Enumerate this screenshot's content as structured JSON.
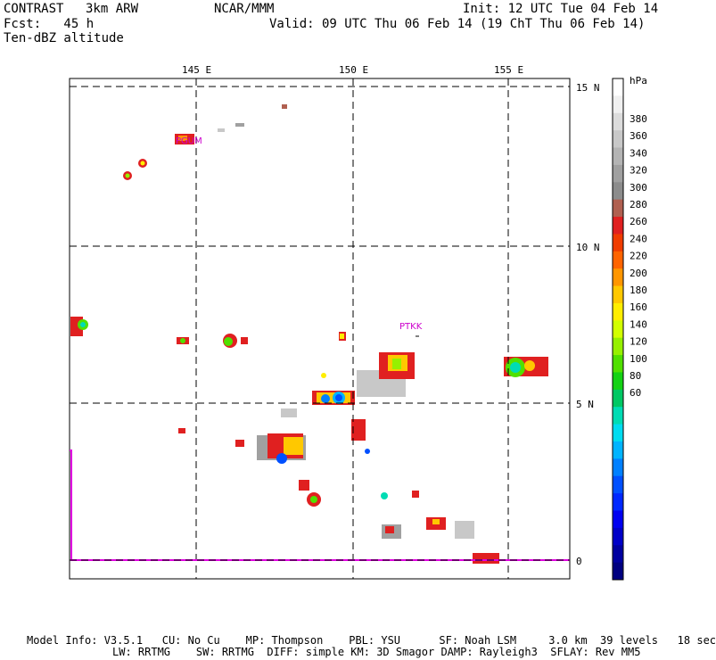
{
  "header": {
    "model_name": "CONTRAST",
    "resolution": "3km ARW",
    "center": "NCAR/MMM",
    "forecast": "Fcst:   45 h",
    "field": "Ten-dBZ altitude",
    "init": "Init: 12 UTC Tue 04 Feb 14",
    "valid": "Valid: 09 UTC Thu 06 Feb 14 (19 ChT Thu 06 Feb 14)"
  },
  "map": {
    "lon_labels": [
      "145 E",
      "150 E",
      "155 E"
    ],
    "lat_labels": [
      "15 N",
      "10 N",
      "5 N",
      "0"
    ],
    "stations": [
      "PGUM",
      "PTKK"
    ]
  },
  "colorbar": {
    "unit": "hPa",
    "tick_labels": [
      "380",
      "360",
      "340",
      "320",
      "300",
      "280",
      "260",
      "240",
      "220",
      "200",
      "180",
      "160",
      "140",
      "120",
      "100",
      "80",
      "60"
    ],
    "colors": [
      "#ffffff",
      "#f0f0f0",
      "#dcdcdc",
      "#c8c8c8",
      "#b4b4b4",
      "#a0a0a0",
      "#8c8c8c",
      "#b06050",
      "#e02020",
      "#f03c00",
      "#ff6400",
      "#ff9600",
      "#ffc800",
      "#ffee00",
      "#d2ff00",
      "#96f000",
      "#50e000",
      "#14d214",
      "#00c864",
      "#00dcb4",
      "#00dcf0",
      "#00b4ff",
      "#0080ff",
      "#0050ff",
      "#0028ff",
      "#0000f0",
      "#0000c8",
      "#0000a0",
      "#000080"
    ]
  },
  "footer": {
    "line1": "Model Info: V3.5.1   CU: No Cu    MP: Thompson    PBL: YSU      SF: Noah LSM     3.0 km  39 levels   18 sec",
    "line2": "LW: RRTMG    SW: RRTMG  DIFF: simple KM: 3D Smagor DAMP: Rayleigh3  SFLAY: Rev MM5"
  }
}
